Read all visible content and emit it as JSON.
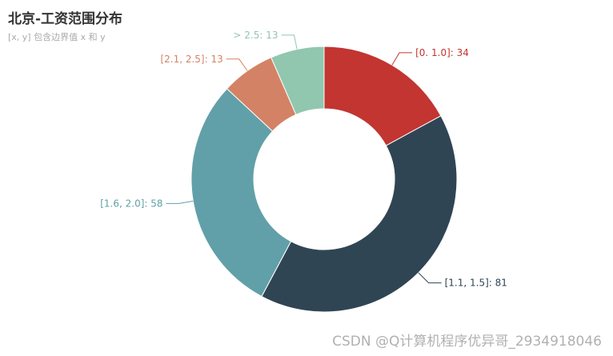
{
  "chart_data": {
    "type": "pie",
    "title": "北京-工资范围分布",
    "subtitle": "[x, y] 包含边界值 x 和 y",
    "slices": [
      {
        "label": "[0. 1.0]",
        "value": 34,
        "color": "#c23531"
      },
      {
        "label": "[1.1, 1.5]",
        "value": 81,
        "color": "#2f4554"
      },
      {
        "label": "[1.6, 2.0]",
        "value": 58,
        "color": "#61a0a8"
      },
      {
        "label": "[2.1, 2.5]",
        "value": 13,
        "color": "#d48265"
      },
      {
        "label": "> 2.5",
        "value": 13,
        "color": "#91c7ae"
      }
    ]
  },
  "watermark": "CSDN @Q计算机程序优异哥_2934918046"
}
